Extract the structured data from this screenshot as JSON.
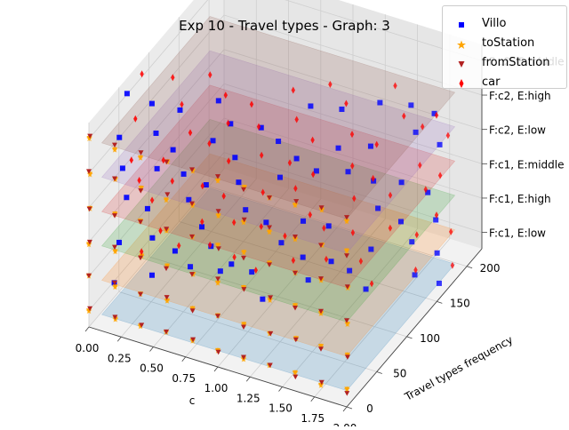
{
  "chart_data": {
    "type": "scatter",
    "title": "Exp 10 - Travel types - Graph: 3",
    "xlabel": "c",
    "ylabel": "Travel types frequency",
    "zlabel": "",
    "projection": "3d",
    "xlim": [
      0,
      2
    ],
    "ylim": [
      0,
      225
    ],
    "x_ticks": [
      "0.00",
      "0.25",
      "0.50",
      "0.75",
      "1.00",
      "1.25",
      "1.50",
      "1.75",
      "2.00"
    ],
    "y_ticks": [
      "0",
      "50",
      "100",
      "150",
      "200"
    ],
    "z_ticks": [
      "F:c1, E:low",
      "F:c1, E:high",
      "F:c1, E:middle",
      "F:c2, E:low",
      "F:c2, E:high",
      "F:c2, E:middle"
    ],
    "grid": true,
    "legend_position": "top-right",
    "planes": [
      {
        "level": "F:c1, E:low",
        "color": "#1f77b4"
      },
      {
        "level": "F:c1, E:high",
        "color": "#ff7f0e"
      },
      {
        "level": "F:c1, E:middle",
        "color": "#2ca02c"
      },
      {
        "level": "F:c2, E:low",
        "color": "#d62728"
      },
      {
        "level": "F:c2, E:high",
        "color": "#9467bd"
      },
      {
        "level": "F:c2, E:middle",
        "color": "#8c564b"
      }
    ],
    "series": [
      {
        "name": "Villo",
        "marker": "square",
        "color": "#0000ff",
        "y_trend": [
          [
            0,
            55
          ],
          [
            1,
            90
          ],
          [
            2,
            150
          ]
        ]
      },
      {
        "name": "toStation",
        "marker": "star",
        "color": "#ffa500",
        "y_trend": [
          [
            0,
            0
          ],
          [
            1,
            0
          ],
          [
            2,
            0
          ]
        ]
      },
      {
        "name": "fromStation",
        "marker": "triangle-down",
        "color": "#b22222",
        "y_trend": [
          [
            0,
            0
          ],
          [
            1,
            0
          ],
          [
            2,
            0
          ]
        ]
      },
      {
        "name": "car",
        "marker": "diamond",
        "color": "#ff0000",
        "y_trend": [
          [
            0,
            90
          ],
          [
            1,
            120
          ],
          [
            2,
            165
          ]
        ]
      }
    ]
  }
}
